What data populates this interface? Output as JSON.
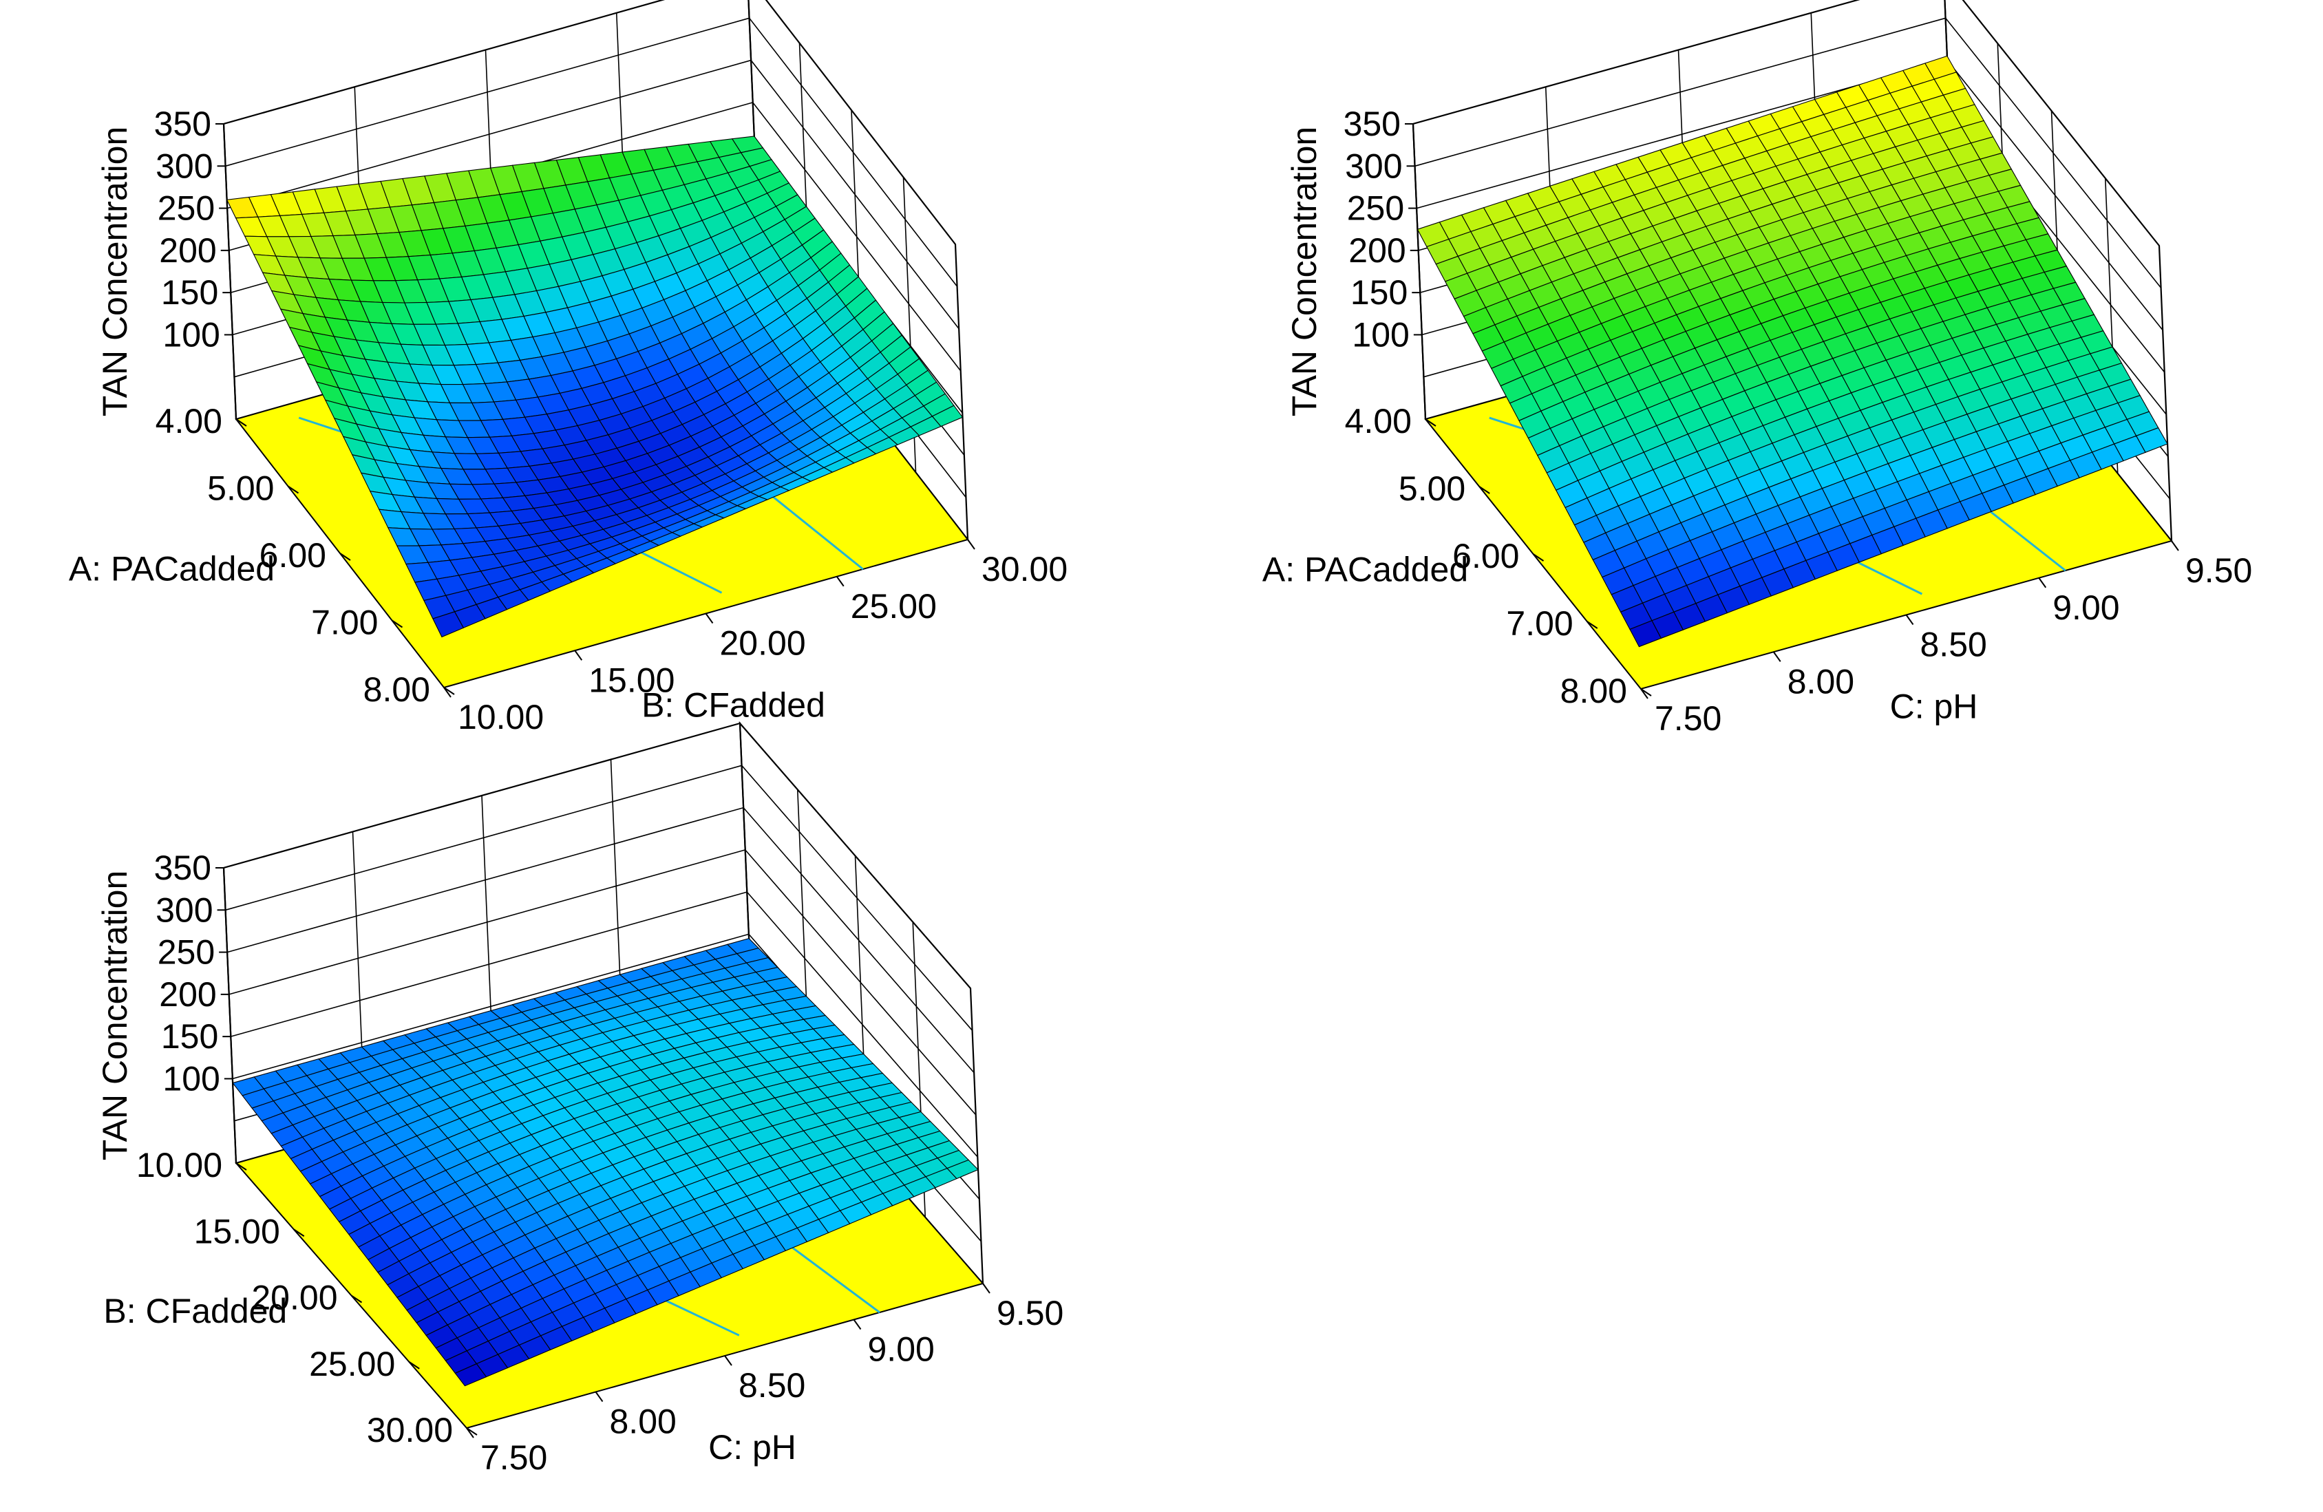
{
  "colors": {
    "background": "#ffffff",
    "floor": "#ffff00",
    "contour": "#22b5d6",
    "box_line": "#000000",
    "grid_line": "#000000",
    "mesh_line": "#000000",
    "colormap": [
      "#0000c8",
      "#0050ff",
      "#00c8ff",
      "#00e88c",
      "#1ee61e",
      "#a0ef14",
      "#ffff00",
      "#ff9600"
    ]
  },
  "chart_data": [
    {
      "type": "surface3d",
      "name": "tan-vs-pac-cf",
      "zlabel": "TAN Concentration",
      "zlim": [
        0,
        350
      ],
      "z_ticks": [
        "100",
        "150",
        "200",
        "250",
        "300",
        "350"
      ],
      "left_axis": {
        "label": "A: PACadded",
        "range": [
          4,
          8
        ],
        "ticks": [
          "4.00",
          "5.00",
          "6.00",
          "7.00",
          "8.00"
        ]
      },
      "right_axis": {
        "label": "B: CFadded",
        "range": [
          10,
          30
        ],
        "ticks": [
          "10.00",
          "15.00",
          "20.00",
          "25.00",
          "30.00"
        ]
      },
      "surface_corners": {
        "left_back": 260,
        "left_front": 60,
        "right_front": 145,
        "right_back": 160
      },
      "surface_center": 70
    },
    {
      "type": "surface3d",
      "name": "tan-vs-pac-ph",
      "zlabel": "TAN Concentration",
      "zlim": [
        0,
        350
      ],
      "z_ticks": [
        "100",
        "150",
        "200",
        "250",
        "300",
        "350"
      ],
      "left_axis": {
        "label": "A: PACadded",
        "range": [
          4,
          8
        ],
        "ticks": [
          "4.00",
          "5.00",
          "6.00",
          "7.00",
          "8.00"
        ]
      },
      "right_axis": {
        "label": "C: pH",
        "range": [
          7.5,
          9.5
        ],
        "ticks": [
          "7.50",
          "8.00",
          "8.50",
          "9.00",
          "9.50"
        ]
      },
      "surface_corners": {
        "left_back": 225,
        "left_front": 50,
        "right_front": 115,
        "right_back": 255
      },
      "surface_center": 175
    },
    {
      "type": "surface3d",
      "name": "tan-vs-cf-ph",
      "zlabel": "TAN Concentration",
      "zlim": [
        0,
        350
      ],
      "z_ticks": [
        "100",
        "150",
        "200",
        "250",
        "300",
        "350"
      ],
      "left_axis": {
        "label": "B: CFadded",
        "range": [
          10,
          30
        ],
        "ticks": [
          "10.00",
          "15.00",
          "20.00",
          "25.00",
          "30.00"
        ]
      },
      "right_axis": {
        "label": "C: pH",
        "range": [
          7.5,
          9.5
        ],
        "ticks": [
          "7.50",
          "8.00",
          "8.50",
          "9.00",
          "9.50"
        ]
      },
      "surface_corners": {
        "left_back": 95,
        "left_front": 50,
        "right_front": 135,
        "right_back": 95
      },
      "surface_center": 120
    }
  ]
}
